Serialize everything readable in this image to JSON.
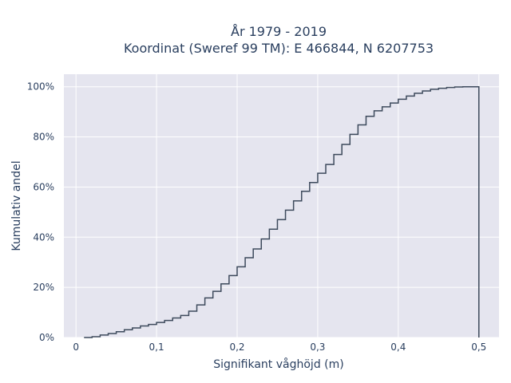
{
  "chart_data": {
    "type": "line",
    "line_shape": "step",
    "title_lines": [
      "År 1979 - 2019",
      "Koordinat (Sweref 99 TM): E 466844, N 6207753"
    ],
    "xlabel": "Signifikant våghöjd (m)",
    "ylabel": "Kumulativ andel",
    "xlim": [
      -0.015,
      0.525
    ],
    "ylim": [
      0,
      1.05
    ],
    "x_ticks": [
      0,
      0.1,
      0.2,
      0.3,
      0.4,
      0.5
    ],
    "x_tick_labels": [
      "0",
      "0,1",
      "0,2",
      "0,3",
      "0,4",
      "0,5"
    ],
    "y_ticks": [
      0,
      0.2,
      0.4,
      0.6,
      0.8,
      1.0
    ],
    "y_tick_labels": [
      "0%",
      "20%",
      "40%",
      "60%",
      "80%",
      "100%"
    ],
    "grid": true,
    "colors": {
      "line": "#3d4a5c",
      "plot_bg": "#e5e5ef",
      "grid": "#ffffff",
      "text": "#2a3f5f"
    },
    "x": [
      0.01,
      0.02,
      0.03,
      0.04,
      0.05,
      0.06,
      0.07,
      0.08,
      0.09,
      0.1,
      0.11,
      0.12,
      0.13,
      0.14,
      0.15,
      0.16,
      0.17,
      0.18,
      0.19,
      0.2,
      0.21,
      0.22,
      0.23,
      0.24,
      0.25,
      0.26,
      0.27,
      0.28,
      0.29,
      0.3,
      0.31,
      0.32,
      0.33,
      0.34,
      0.35,
      0.36,
      0.37,
      0.38,
      0.39,
      0.4,
      0.41,
      0.42,
      0.43,
      0.44,
      0.45,
      0.46,
      0.47,
      0.48,
      0.49,
      0.5,
      0.5
    ],
    "y": [
      0.0,
      0.003,
      0.01,
      0.016,
      0.023,
      0.031,
      0.038,
      0.046,
      0.052,
      0.06,
      0.068,
      0.078,
      0.088,
      0.105,
      0.13,
      0.158,
      0.184,
      0.214,
      0.247,
      0.282,
      0.318,
      0.353,
      0.393,
      0.432,
      0.47,
      0.508,
      0.545,
      0.583,
      0.618,
      0.655,
      0.69,
      0.73,
      0.77,
      0.81,
      0.848,
      0.882,
      0.904,
      0.92,
      0.935,
      0.95,
      0.963,
      0.974,
      0.983,
      0.99,
      0.994,
      0.997,
      0.999,
      1.0,
      1.0,
      1.0,
      0.0
    ]
  }
}
